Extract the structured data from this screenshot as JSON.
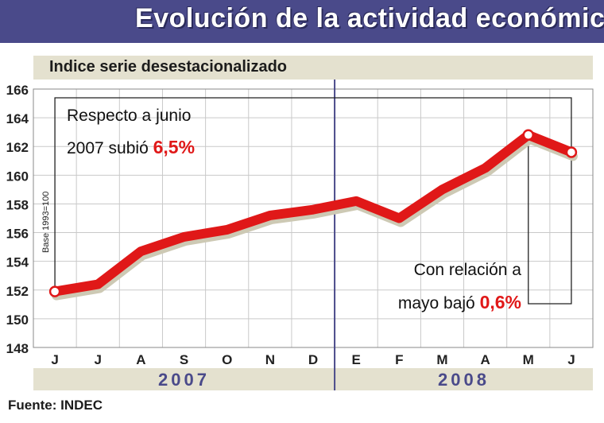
{
  "header": {
    "title": "Evolución de la actividad económica",
    "subtitle": "Indice serie desestacionalizado",
    "source": "Fuente: INDEC"
  },
  "colors": {
    "title_bar": "#4a4a8a",
    "band": "#e4e1cf",
    "line": "#e01818",
    "highlight": "#e01818",
    "year_text": "#4a4a8a"
  },
  "chart_data": {
    "type": "line",
    "title": "Indice serie desestacionalizado",
    "ylabel": "Base 1993=100",
    "ylim": [
      148,
      166
    ],
    "yticks": [
      148,
      150,
      152,
      154,
      156,
      158,
      160,
      162,
      164,
      166
    ],
    "grid": true,
    "categories": [
      "J",
      "J",
      "A",
      "S",
      "O",
      "N",
      "D",
      "E",
      "F",
      "M",
      "A",
      "M",
      "J"
    ],
    "years": [
      {
        "label": "2007",
        "from": 0,
        "to": 6
      },
      {
        "label": "2008",
        "from": 7,
        "to": 12
      }
    ],
    "series": [
      {
        "values": [
          151.9,
          152.4,
          154.7,
          155.7,
          156.2,
          157.2,
          157.6,
          158.2,
          157.0,
          159.0,
          160.5,
          162.8,
          161.6
        ]
      }
    ],
    "annotations": [
      {
        "line1": "Respecto a junio",
        "line2": "2007 subió ",
        "value": "6,5%"
      },
      {
        "line1": "Con relación a",
        "line2": "mayo bajó ",
        "value": "0,6%"
      }
    ]
  }
}
